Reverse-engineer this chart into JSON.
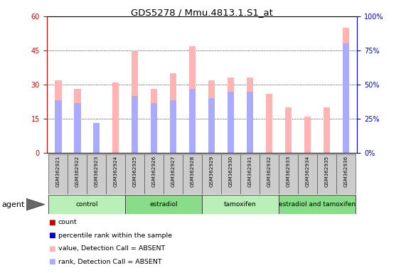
{
  "title": "GDS5278 / Mmu.4813.1.S1_at",
  "samples": [
    "GSM362921",
    "GSM362922",
    "GSM362923",
    "GSM362924",
    "GSM362925",
    "GSM362926",
    "GSM362927",
    "GSM362928",
    "GSM362929",
    "GSM362930",
    "GSM362931",
    "GSM362932",
    "GSM362933",
    "GSM362934",
    "GSM362935",
    "GSM362936"
  ],
  "absent_count_values": [
    32,
    28,
    13,
    31,
    45,
    28,
    35,
    47,
    32,
    33,
    33,
    26,
    20,
    16,
    20,
    55
  ],
  "absent_rank_values": [
    23,
    22,
    13,
    0,
    25,
    22,
    23,
    28,
    24,
    27,
    27,
    0,
    0,
    0,
    0,
    48
  ],
  "groups": [
    {
      "label": "control",
      "start": 0,
      "end": 4,
      "color": "#b8f0b8"
    },
    {
      "label": "estradiol",
      "start": 4,
      "end": 8,
      "color": "#88dd88"
    },
    {
      "label": "tamoxifen",
      "start": 8,
      "end": 12,
      "color": "#b8f0b8"
    },
    {
      "label": "estradiol and tamoxifen",
      "start": 12,
      "end": 16,
      "color": "#88dd88"
    }
  ],
  "ylim_left": [
    0,
    60
  ],
  "ylim_right": [
    0,
    100
  ],
  "yticks_left": [
    0,
    15,
    30,
    45,
    60
  ],
  "yticks_right": [
    0,
    25,
    50,
    75,
    100
  ],
  "absent_bar_color": "#ffb3b3",
  "absent_rank_color": "#aaaaff",
  "count_color": "#cc0000",
  "rank_color": "#0000cc",
  "bg_color": "#ffffff",
  "legend_items": [
    {
      "label": "count",
      "color": "#cc0000"
    },
    {
      "label": "percentile rank within the sample",
      "color": "#0000cc"
    },
    {
      "label": "value, Detection Call = ABSENT",
      "color": "#ffb3b3"
    },
    {
      "label": "rank, Detection Call = ABSENT",
      "color": "#aaaaff"
    }
  ]
}
